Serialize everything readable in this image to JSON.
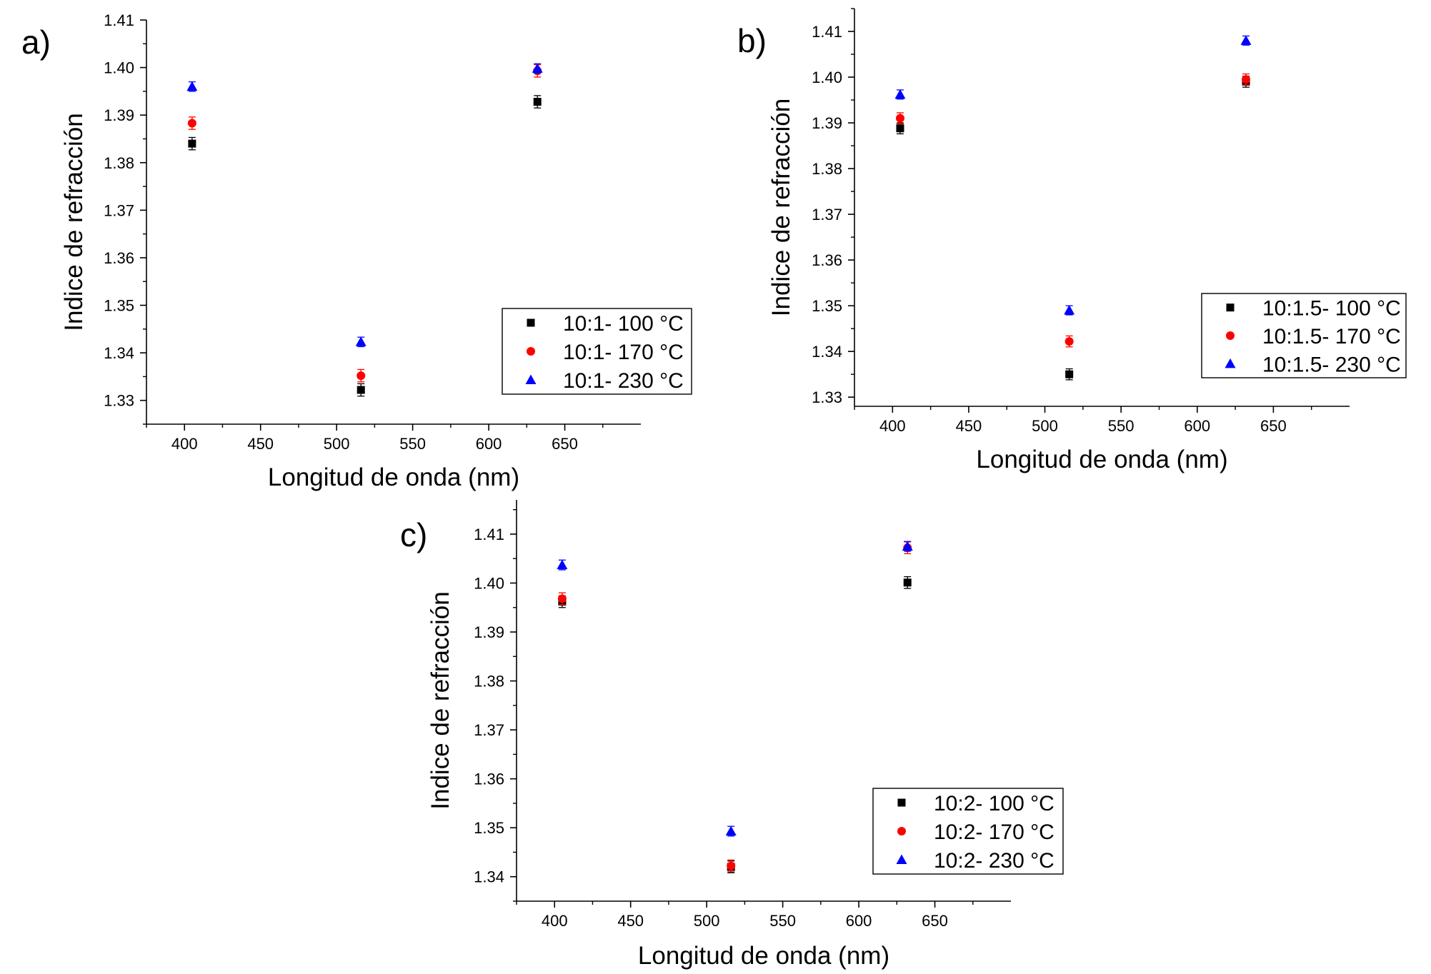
{
  "chart_data": [
    {
      "type": "scatter",
      "panel_label": "a)",
      "xlabel": "Longitud de onda (nm)",
      "ylabel": "Indice de refracción",
      "xlim": [
        375,
        700
      ],
      "ylim": [
        1.325,
        1.41
      ],
      "xticks": [
        400,
        450,
        500,
        550,
        600,
        650
      ],
      "yticks": [
        1.33,
        1.34,
        1.35,
        1.36,
        1.37,
        1.38,
        1.39,
        1.4,
        1.41
      ],
      "x_tick_labels": [
        "400",
        "450",
        "500",
        "550",
        "600",
        "650"
      ],
      "y_tick_labels": [
        "1.33",
        "1.34",
        "1.35",
        "1.36",
        "1.37",
        "1.38",
        "1.39",
        "1.40",
        "1.41"
      ],
      "grid": false,
      "legend_position": "bottom-right",
      "x": [
        405,
        516,
        632
      ],
      "series": [
        {
          "name": "10:1- 100 °C",
          "marker": "square",
          "color": "#000000",
          "values": [
            1.384,
            1.3322,
            1.3928
          ],
          "errors": [
            0.0013,
            0.0013,
            0.0013
          ]
        },
        {
          "name": "10:1- 170 °C",
          "marker": "circle",
          "color": "#ff0000",
          "values": [
            1.3883,
            1.3352,
            1.3993
          ],
          "errors": [
            0.0013,
            0.0013,
            0.0013
          ]
        },
        {
          "name": "10:1- 230 °C",
          "marker": "triangle",
          "color": "#0000ff",
          "values": [
            1.396,
            1.3423,
            1.3998
          ],
          "errors": [
            0.001,
            0.001,
            0.001
          ]
        }
      ]
    },
    {
      "type": "scatter",
      "panel_label": "b)",
      "xlabel": "Longitud de onda (nm)",
      "ylabel": "Indice de refracción",
      "xlim": [
        375,
        700
      ],
      "ylim": [
        1.328,
        1.415
      ],
      "xticks": [
        400,
        450,
        500,
        550,
        600,
        650
      ],
      "yticks": [
        1.33,
        1.34,
        1.35,
        1.36,
        1.37,
        1.38,
        1.39,
        1.4,
        1.41
      ],
      "x_tick_labels": [
        "400",
        "450",
        "500",
        "550",
        "600",
        "650"
      ],
      "y_tick_labels": [
        "1.33",
        "1.34",
        "1.35",
        "1.36",
        "1.37",
        "1.38",
        "1.39",
        "1.40",
        "1.41"
      ],
      "grid": false,
      "legend_position": "right",
      "x": [
        405,
        516,
        632
      ],
      "series": [
        {
          "name": "10:1.5- 100 °C",
          "marker": "square",
          "color": "#000000",
          "values": [
            1.3888,
            1.335,
            1.399
          ],
          "errors": [
            0.0012,
            0.0012,
            0.0012
          ]
        },
        {
          "name": "10:1.5- 170 °C",
          "marker": "circle",
          "color": "#ff0000",
          "values": [
            1.391,
            1.3422,
            1.3995
          ],
          "errors": [
            0.0012,
            0.0012,
            0.0012
          ]
        },
        {
          "name": "10:1.5- 230 °C",
          "marker": "triangle",
          "color": "#0000ff",
          "values": [
            1.3962,
            1.349,
            1.408
          ],
          "errors": [
            0.001,
            0.001,
            0.001
          ]
        }
      ]
    },
    {
      "type": "scatter",
      "panel_label": "c)",
      "xlabel": "Longitud de onda (nm)",
      "ylabel": "Indice de refracción",
      "xlim": [
        375,
        700
      ],
      "ylim": [
        1.335,
        1.417
      ],
      "xticks": [
        400,
        450,
        500,
        550,
        600,
        650
      ],
      "yticks": [
        1.34,
        1.35,
        1.36,
        1.37,
        1.38,
        1.39,
        1.4,
        1.41
      ],
      "x_tick_labels": [
        "400",
        "450",
        "500",
        "550",
        "600",
        "650"
      ],
      "y_tick_labels": [
        "1.34",
        "1.35",
        "1.36",
        "1.37",
        "1.38",
        "1.39",
        "1.40",
        "1.41"
      ],
      "grid": false,
      "legend_position": "bottom-right",
      "x": [
        405,
        516,
        632
      ],
      "series": [
        {
          "name": "10:2- 100 °C",
          "marker": "square",
          "color": "#000000",
          "values": [
            1.3962,
            1.342,
            1.4001
          ],
          "errors": [
            0.0012,
            0.0012,
            0.0012
          ]
        },
        {
          "name": "10:2- 170 °C",
          "marker": "circle",
          "color": "#ff0000",
          "values": [
            1.3968,
            1.3422,
            1.4072
          ],
          "errors": [
            0.0012,
            0.0012,
            0.0012
          ]
        },
        {
          "name": "10:2- 230 °C",
          "marker": "triangle",
          "color": "#0000ff",
          "values": [
            1.4037,
            1.3493,
            1.4075
          ],
          "errors": [
            0.001,
            0.001,
            0.001
          ]
        }
      ]
    }
  ]
}
